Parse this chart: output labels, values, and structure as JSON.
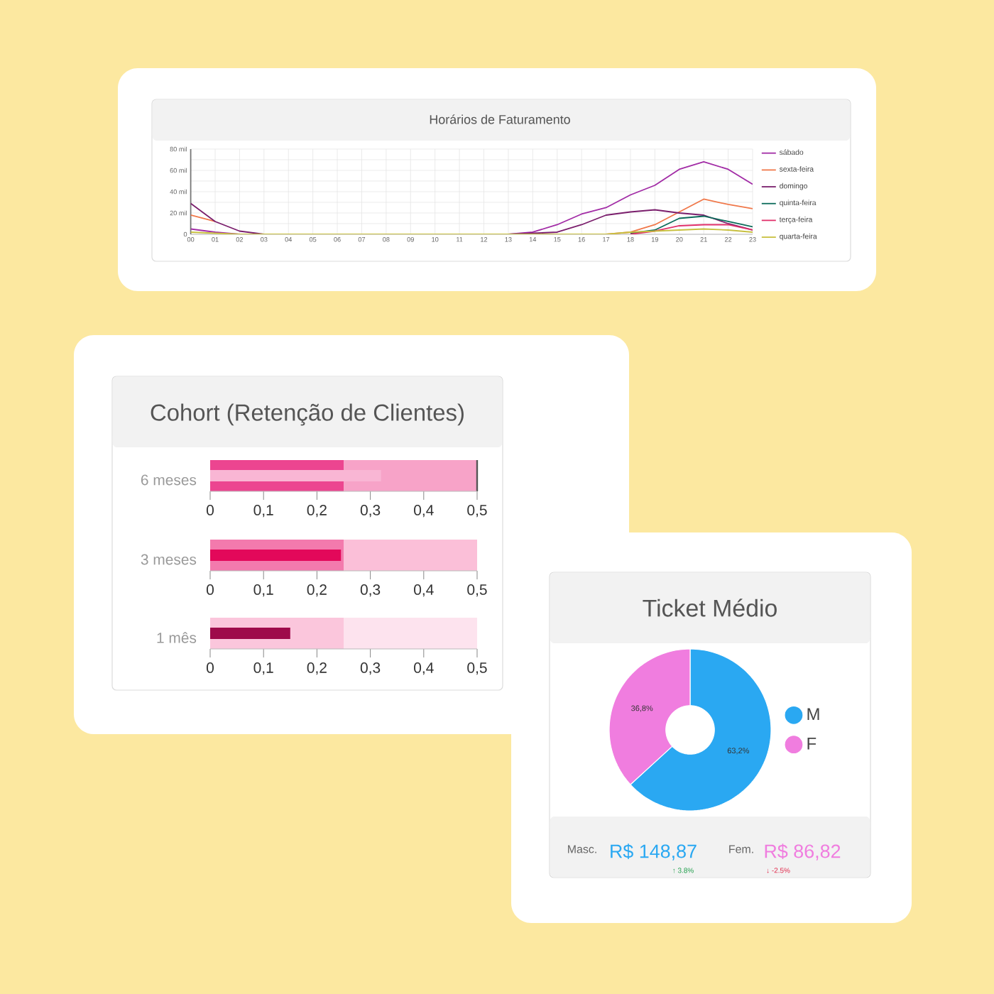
{
  "chart_data": [
    {
      "type": "line",
      "title": "Horários de Faturamento",
      "categories": [
        "00",
        "01",
        "02",
        "03",
        "04",
        "05",
        "06",
        "07",
        "08",
        "09",
        "10",
        "11",
        "12",
        "13",
        "14",
        "15",
        "16",
        "17",
        "18",
        "19",
        "20",
        "21",
        "22",
        "23"
      ],
      "ylim": [
        0,
        80
      ],
      "yticks": [
        0,
        {
          "value": 10,
          "label": null
        },
        {
          "value": 20,
          "label": "20 mil"
        },
        {
          "value": 30,
          "label": null
        },
        {
          "value": 40,
          "label": "40 mil"
        },
        {
          "value": 50,
          "label": null
        },
        {
          "value": 60,
          "label": "60 mil"
        },
        {
          "value": 70,
          "label": null
        },
        {
          "value": 80,
          "label": "80 mil"
        }
      ],
      "grid": true,
      "legend": "right",
      "series": [
        {
          "name": "sábado",
          "color": "#a22ca6",
          "values": [
            5,
            2,
            0,
            null,
            null,
            null,
            null,
            null,
            null,
            null,
            null,
            null,
            null,
            0,
            2,
            9,
            19,
            25,
            37,
            46,
            61,
            68,
            61,
            47
          ]
        },
        {
          "name": "sexta-feira",
          "color": "#f0784a",
          "values": [
            18,
            12,
            null,
            null,
            null,
            null,
            null,
            null,
            null,
            null,
            null,
            null,
            null,
            null,
            null,
            null,
            null,
            0,
            2,
            9,
            21,
            33,
            28,
            24
          ]
        },
        {
          "name": "domingo",
          "color": "#7a1e6c",
          "values": [
            29,
            12,
            3,
            0,
            null,
            null,
            null,
            null,
            null,
            null,
            null,
            null,
            null,
            0,
            1,
            2,
            9,
            18,
            21,
            23,
            20,
            18,
            10,
            4
          ]
        },
        {
          "name": "quinta-feira",
          "color": "#0b6b5a",
          "values": [
            null,
            null,
            null,
            null,
            null,
            null,
            null,
            null,
            null,
            null,
            null,
            null,
            null,
            null,
            null,
            null,
            null,
            null,
            1,
            4,
            15,
            17,
            12,
            7
          ]
        },
        {
          "name": "terça-feira",
          "color": "#e0306a",
          "values": [
            null,
            null,
            null,
            null,
            null,
            null,
            null,
            null,
            null,
            null,
            null,
            null,
            null,
            null,
            null,
            null,
            null,
            null,
            0,
            3,
            8,
            9,
            9,
            4
          ]
        },
        {
          "name": "quarta-feira",
          "color": "#c8c040",
          "values": [
            2,
            1,
            0,
            0,
            0,
            0,
            0,
            0,
            0,
            0,
            0,
            0,
            0,
            0,
            0,
            0,
            0,
            0,
            2,
            3,
            4,
            5,
            4,
            2
          ]
        }
      ]
    },
    {
      "type": "bar",
      "orientation": "horizontal",
      "title": "Cohort (Retenção de Clientes)",
      "categories": [
        "6 meses"
      ],
      "values": [
        0.32
      ],
      "color": "#f9b6d4",
      "bands": [
        {
          "axis": "x",
          "from": 0,
          "to": 0.25,
          "color": "#ec4590"
        },
        {
          "axis": "x",
          "from": 0.25,
          "to": 0.5,
          "color": "#f7a3c8"
        }
      ],
      "ref_lines": [
        {
          "axis": "x",
          "value": 0.5,
          "color": "#555555"
        }
      ],
      "xlim": [
        0,
        0.5
      ],
      "xticks": [
        0,
        {
          "value": 0.1,
          "label": "0,1"
        },
        {
          "value": 0.2,
          "label": "0,2"
        },
        {
          "value": 0.3,
          "label": "0,3"
        },
        {
          "value": 0.4,
          "label": "0,4"
        },
        {
          "value": 0.5,
          "label": "0,5"
        }
      ]
    },
    {
      "type": "bar",
      "orientation": "horizontal",
      "categories": [
        "3 meses"
      ],
      "values": [
        0.245
      ],
      "color": "#e3085a",
      "bands": [
        {
          "axis": "x",
          "from": 0,
          "to": 0.25,
          "color": "#f37aad"
        },
        {
          "axis": "x",
          "from": 0.25,
          "to": 0.5,
          "color": "#fbbfd8"
        }
      ],
      "xlim": [
        0,
        0.5
      ],
      "xticks": [
        0,
        {
          "value": 0.1,
          "label": "0,1"
        },
        {
          "value": 0.2,
          "label": "0,2"
        },
        {
          "value": 0.3,
          "label": "0,3"
        },
        {
          "value": 0.4,
          "label": "0,4"
        },
        {
          "value": 0.5,
          "label": "0,5"
        }
      ]
    },
    {
      "type": "bar",
      "orientation": "horizontal",
      "categories": [
        "1 mês"
      ],
      "values": [
        0.15
      ],
      "color": "#9e0b4b",
      "bands": [
        {
          "axis": "x",
          "from": 0,
          "to": 0.25,
          "color": "#fbc6dc"
        },
        {
          "axis": "x",
          "from": 0.25,
          "to": 0.5,
          "color": "#fde3ee"
        }
      ],
      "xlim": [
        0,
        0.5
      ],
      "xticks": [
        0,
        {
          "value": 0.1,
          "label": "0,1"
        },
        {
          "value": 0.2,
          "label": "0,2"
        },
        {
          "value": 0.3,
          "label": "0,3"
        },
        {
          "value": 0.4,
          "label": "0,4"
        },
        {
          "value": 0.5,
          "label": "0,5"
        }
      ]
    },
    {
      "type": "donut",
      "title": "Ticket Médio",
      "categories": [
        "M",
        "F"
      ],
      "values": [
        63.2,
        36.8
      ],
      "colors": [
        "#2aa8f2",
        "#f07ddf"
      ],
      "value_labels": [
        "63,2%",
        "36,8%"
      ],
      "legend": "right",
      "annotations": [
        "Masc.",
        "R$ 148,87",
        "↑ 3.8%",
        "Fem.",
        "R$ 86,82",
        "↓ -2.5%"
      ]
    }
  ]
}
